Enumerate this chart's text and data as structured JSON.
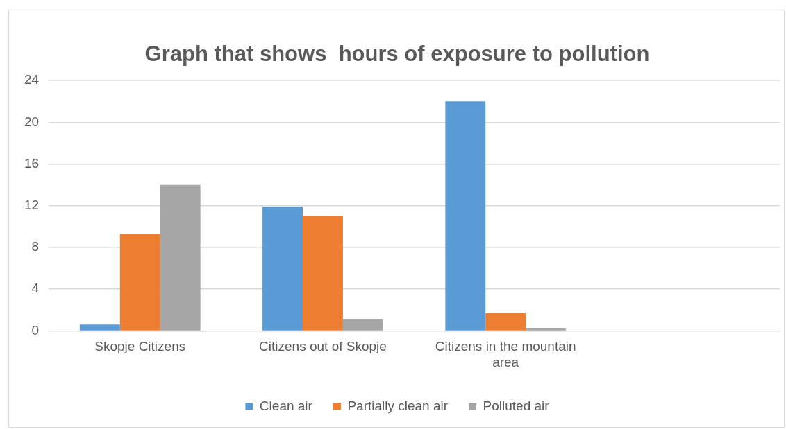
{
  "chart_data": {
    "type": "bar",
    "title": "Graph that shows  hours of exposure to pollution",
    "categories": [
      "Skopje Citizens",
      "Citizens out of Skopje",
      "Citizens in the mountain area",
      null
    ],
    "series": [
      {
        "name": "Clean air",
        "color": "#5b9bd5",
        "values": [
          0.6,
          11.9,
          22,
          null
        ]
      },
      {
        "name": "Partially clean air",
        "color": "#ed7d31",
        "values": [
          9.3,
          11,
          1.7,
          null
        ]
      },
      {
        "name": "Polluted air",
        "color": "#a5a5a5",
        "values": [
          14,
          1.1,
          0.3,
          null
        ]
      }
    ],
    "ylim": [
      0,
      24
    ],
    "yticks": [
      0,
      4,
      8,
      12,
      16,
      20,
      24
    ],
    "grid": "y",
    "legend": "bottom"
  }
}
